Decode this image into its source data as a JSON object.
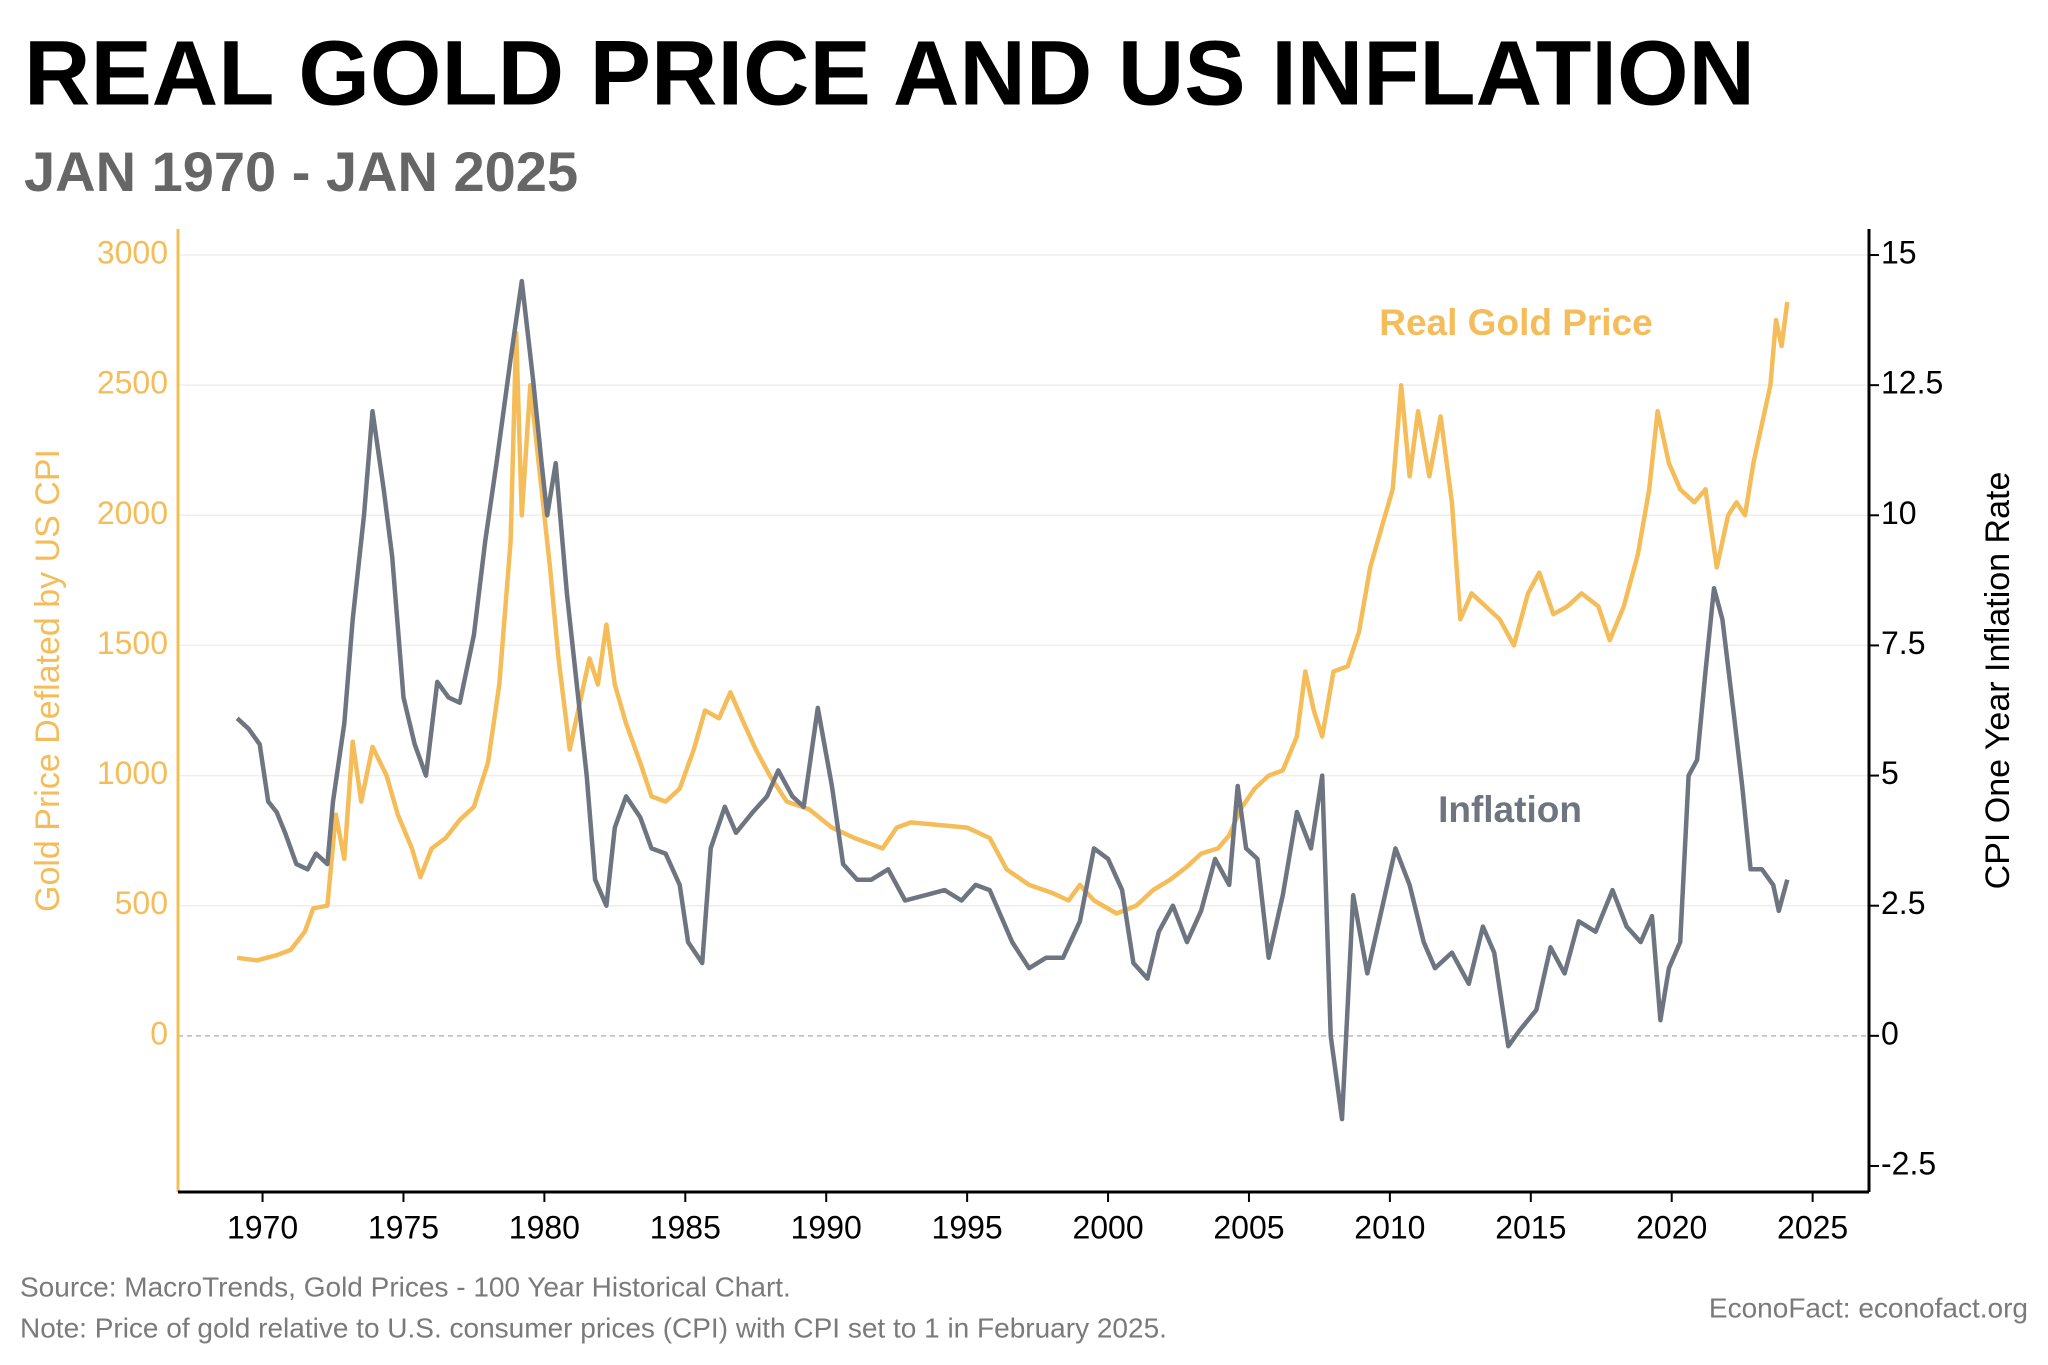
{
  "chart_data": {
    "type": "line",
    "title": "REAL GOLD PRICE AND US INFLATION",
    "subtitle": "JAN 1970 - JAN 2025",
    "y_label": "Gold Price Deflated by US CPI",
    "y2_label": "CPI One Year Inflation Rate",
    "source": "Source: MacroTrends, Gold Prices - 100 Year Historical Chart.",
    "note": "Note: Price of gold relative to U.S. consumer prices (CPI) with CPI set to 1 in February 2025.",
    "credit": "EconoFact:   econofact.org",
    "xlim": [
      1967,
      2027
    ],
    "xticks": [
      1970,
      1975,
      1980,
      1985,
      1990,
      1995,
      2000,
      2005,
      2010,
      2015,
      2020,
      2025
    ],
    "ylim": [
      -600,
      3100
    ],
    "yticks": [
      0,
      500,
      1000,
      1500,
      2000,
      2500,
      3000
    ],
    "y2lim": [
      -3,
      15.5
    ],
    "y2ticks": [
      -2.5,
      0,
      2.5,
      5,
      7.5,
      10,
      12.5,
      15
    ],
    "grid": true,
    "series": [
      {
        "name": "Real Gold Price",
        "color": "#f5bd59",
        "axis": "y",
        "x": [
          1969.1,
          1969.8,
          1970.5,
          1971.0,
          1971.5,
          1971.8,
          1972.3,
          1972.6,
          1972.9,
          1973.2,
          1973.5,
          1973.9,
          1974.4,
          1974.8,
          1975.3,
          1975.6,
          1976.0,
          1976.5,
          1977.0,
          1977.5,
          1978.0,
          1978.4,
          1978.8,
          1979.0,
          1979.2,
          1979.5,
          1979.8,
          1980.2,
          1980.5,
          1980.9,
          1981.3,
          1981.6,
          1981.9,
          1982.2,
          1982.5,
          1982.9,
          1983.4,
          1983.8,
          1984.3,
          1984.8,
          1985.3,
          1985.7,
          1986.2,
          1986.6,
          1987.0,
          1987.5,
          1988.0,
          1988.6,
          1989.4,
          1990.2,
          1991.0,
          1992.0,
          1992.5,
          1993.0,
          1994.0,
          1995.0,
          1995.8,
          1996.4,
          1997.2,
          1998.0,
          1998.6,
          1999.0,
          1999.5,
          2000.3,
          2001.0,
          2001.6,
          2002.2,
          2002.8,
          2003.3,
          2003.9,
          2004.3,
          2004.7,
          2005.2,
          2005.7,
          2006.2,
          2006.7,
          2007.0,
          2007.3,
          2007.6,
          2008.0,
          2008.5,
          2008.9,
          2009.3,
          2009.7,
          2010.1,
          2010.4,
          2010.7,
          2011.0,
          2011.4,
          2011.8,
          2012.2,
          2012.5,
          2012.9,
          2013.4,
          2013.9,
          2014.4,
          2014.9,
          2015.3,
          2015.8,
          2016.3,
          2016.8,
          2017.4,
          2017.8,
          2018.3,
          2018.8,
          2019.2,
          2019.5,
          2019.9,
          2020.3,
          2020.8,
          2021.2,
          2021.6,
          2022.0,
          2022.3,
          2022.6,
          2022.9,
          2023.2,
          2023.5,
          2023.7,
          2023.9,
          2024.1
        ],
        "values": [
          300,
          290,
          310,
          330,
          400,
          490,
          500,
          850,
          680,
          1130,
          900,
          1110,
          1000,
          850,
          720,
          610,
          720,
          760,
          830,
          880,
          1050,
          1350,
          1900,
          2700,
          2000,
          2500,
          2200,
          1800,
          1450,
          1100,
          1300,
          1450,
          1350,
          1580,
          1350,
          1200,
          1050,
          920,
          900,
          950,
          1100,
          1250,
          1220,
          1320,
          1220,
          1100,
          1000,
          900,
          870,
          800,
          760,
          720,
          800,
          820,
          810,
          800,
          760,
          640,
          580,
          550,
          520,
          580,
          520,
          470,
          500,
          560,
          600,
          650,
          700,
          720,
          770,
          870,
          950,
          1000,
          1020,
          1150,
          1400,
          1250,
          1150,
          1400,
          1420,
          1550,
          1800,
          1950,
          2100,
          2500,
          2150,
          2400,
          2150,
          2380,
          2050,
          1600,
          1700,
          1650,
          1600,
          1500,
          1700,
          1780,
          1620,
          1650,
          1700,
          1650,
          1520,
          1650,
          1850,
          2100,
          2400,
          2200,
          2100,
          2050,
          2100,
          1800,
          2000,
          2050,
          2000,
          2200,
          2350,
          2500,
          2750,
          2650,
          2820
        ]
      },
      {
        "name": "Inflation",
        "color": "#6e7580",
        "axis": "y2",
        "x": [
          1969.1,
          1969.5,
          1969.9,
          1970.2,
          1970.5,
          1970.8,
          1971.2,
          1971.6,
          1971.9,
          1972.3,
          1972.5,
          1972.9,
          1973.2,
          1973.6,
          1973.9,
          1974.3,
          1974.6,
          1975.0,
          1975.4,
          1975.8,
          1976.2,
          1976.6,
          1977.0,
          1977.5,
          1977.9,
          1978.3,
          1978.8,
          1979.2,
          1979.6,
          1979.9,
          1980.1,
          1980.4,
          1980.8,
          1981.2,
          1981.5,
          1981.8,
          1982.2,
          1982.5,
          1982.9,
          1983.4,
          1983.8,
          1984.3,
          1984.8,
          1985.1,
          1985.6,
          1985.9,
          1986.4,
          1986.8,
          1987.4,
          1987.9,
          1988.3,
          1988.8,
          1989.2,
          1989.7,
          1990.2,
          1990.6,
          1991.1,
          1991.6,
          1992.2,
          1992.8,
          1993.5,
          1994.2,
          1994.8,
          1995.3,
          1995.8,
          1996.6,
          1997.2,
          1997.8,
          1998.4,
          1999.0,
          1999.5,
          2000.0,
          2000.5,
          2000.9,
          2001.4,
          2001.8,
          2002.3,
          2002.8,
          2003.3,
          2003.8,
          2004.3,
          2004.6,
          2004.9,
          2005.3,
          2005.7,
          2006.2,
          2006.7,
          2007.2,
          2007.6,
          2007.9,
          2008.3,
          2008.7,
          2009.2,
          2009.7,
          2010.2,
          2010.7,
          2011.2,
          2011.6,
          2012.2,
          2012.8,
          2013.3,
          2013.7,
          2014.2,
          2014.6,
          2015.2,
          2015.7,
          2016.2,
          2016.7,
          2017.3,
          2017.9,
          2018.4,
          2018.9,
          2019.3,
          2019.6,
          2019.9,
          2020.3,
          2020.6,
          2020.9,
          2021.2,
          2021.5,
          2021.8,
          2022.2,
          2022.5,
          2022.8,
          2023.2,
          2023.6,
          2023.8,
          2024.1
        ],
        "values": [
          6.1,
          5.9,
          5.6,
          4.5,
          4.3,
          3.9,
          3.3,
          3.2,
          3.5,
          3.3,
          4.5,
          6.0,
          8.0,
          10.0,
          12.0,
          10.5,
          9.2,
          6.5,
          5.6,
          5.0,
          6.8,
          6.5,
          6.4,
          7.7,
          9.5,
          11.0,
          13.0,
          14.5,
          12.6,
          11.0,
          10.0,
          11.0,
          8.5,
          6.5,
          5.0,
          3.0,
          2.5,
          4.0,
          4.6,
          4.2,
          3.6,
          3.5,
          2.9,
          1.8,
          1.4,
          3.6,
          4.4,
          3.9,
          4.3,
          4.6,
          5.1,
          4.6,
          4.4,
          6.3,
          4.8,
          3.3,
          3.0,
          3.0,
          3.2,
          2.6,
          2.7,
          2.8,
          2.6,
          2.9,
          2.8,
          1.8,
          1.3,
          1.5,
          1.5,
          2.2,
          3.6,
          3.4,
          2.8,
          1.4,
          1.1,
          2.0,
          2.5,
          1.8,
          2.4,
          3.4,
          2.9,
          4.8,
          3.6,
          3.4,
          1.5,
          2.7,
          4.3,
          3.6,
          5.0,
          0.0,
          -1.6,
          2.7,
          1.2,
          2.4,
          3.6,
          2.9,
          1.8,
          1.3,
          1.6,
          1.0,
          2.1,
          1.6,
          -0.2,
          0.1,
          0.5,
          1.7,
          1.2,
          2.2,
          2.0,
          2.8,
          2.1,
          1.8,
          2.3,
          0.3,
          1.3,
          1.8,
          5.0,
          5.3,
          7.0,
          8.6,
          8.0,
          6.2,
          4.8,
          3.2,
          3.2,
          2.9,
          2.4,
          3.0
        ]
      }
    ]
  }
}
